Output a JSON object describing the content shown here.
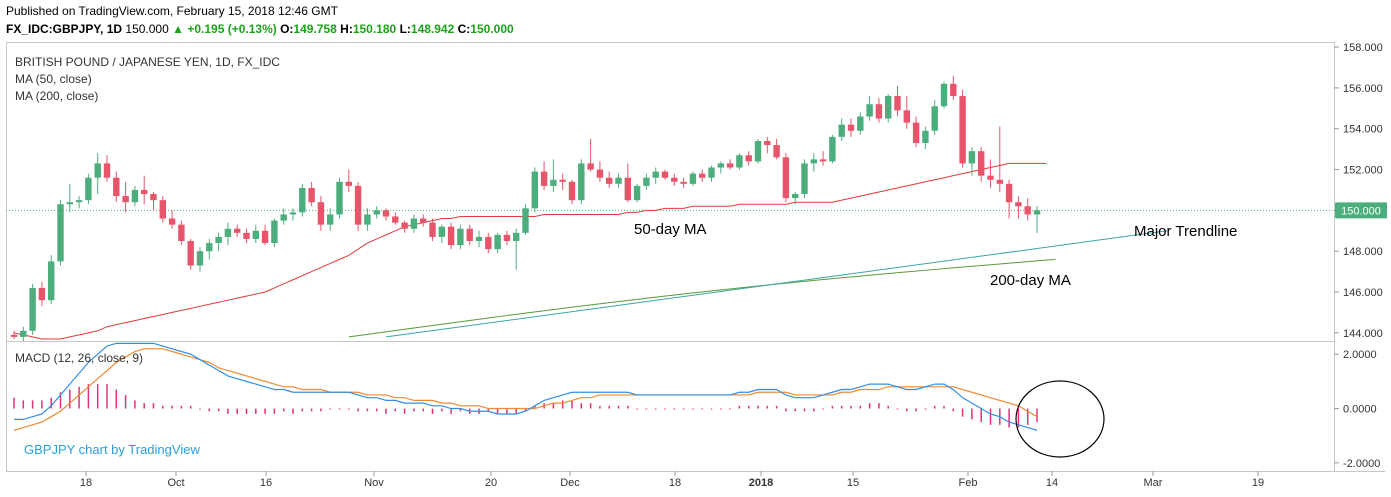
{
  "header": {
    "published": "Published on TradingView.com, February 15, 2018 12:46 GMT",
    "symbol": "FX_IDC:GBPJPY, 1D",
    "last": "150.000",
    "change": "▲ +0.195 (+0.13%)",
    "o_label": "O:",
    "o_value": "149.758",
    "h_label": "H:",
    "h_value": "150.180",
    "l_label": "L:",
    "l_value": "148.942",
    "c_label": "C:",
    "c_value": "150.000"
  },
  "legend": {
    "title": "BRITISH POUND / JAPANESE YEN, 1D, FX_IDC",
    "ma50": "MA (50, close)",
    "ma200": "MA (200, close)",
    "macd": "MACD (12, 26, close, 9)",
    "credit": "GBPJPY chart by TradingView"
  },
  "colors": {
    "up": "#4cae7c",
    "down": "#e8546a",
    "ma50": "#e03a3a",
    "ma200": "#5a9a3a",
    "trend": "#3aa6a6",
    "macd": "#2f8fe8",
    "signal": "#f08a30",
    "hist": "#e0327a",
    "credit": "#2a9fd8",
    "last_tag": "#4cae7c"
  },
  "annotations": {
    "ma50": "50-day MA",
    "trendline": "Major Trendline",
    "ma200": "200-day MA"
  },
  "chart_data": {
    "type": "candlestick",
    "price_axis": {
      "ticks": [
        "158.000",
        "156.000",
        "154.000",
        "152.000",
        "150.000",
        "148.000",
        "146.000",
        "144.000"
      ],
      "ylim": [
        143.6,
        158.2
      ]
    },
    "macd_axis": {
      "ticks": [
        "2.0000",
        "0.0000",
        "-2.0000"
      ],
      "ylim": [
        -2.3,
        2.45
      ]
    },
    "last_price": "150.000",
    "x_ticks": [
      "18",
      "Oct",
      "16",
      "Nov",
      "20",
      "Dec",
      "18",
      "2018",
      "15",
      "Feb",
      "14",
      "Mar",
      "19"
    ],
    "ohlc": [
      [
        143.9,
        144.1,
        143.7,
        143.8
      ],
      [
        143.8,
        144.3,
        143.6,
        144.1
      ],
      [
        144.1,
        146.4,
        143.9,
        146.2
      ],
      [
        146.2,
        146.5,
        145.3,
        145.6
      ],
      [
        145.6,
        147.8,
        145.4,
        147.5
      ],
      [
        147.5,
        150.5,
        147.3,
        150.3
      ],
      [
        150.3,
        151.3,
        149.9,
        150.4
      ],
      [
        150.4,
        150.7,
        150.1,
        150.5
      ],
      [
        150.5,
        151.8,
        150.3,
        151.6
      ],
      [
        151.6,
        152.8,
        150.8,
        152.3
      ],
      [
        152.3,
        152.7,
        151.4,
        151.6
      ],
      [
        151.6,
        151.9,
        150.4,
        150.7
      ],
      [
        150.7,
        151.4,
        149.9,
        150.4
      ],
      [
        150.4,
        151.2,
        150.2,
        151.0
      ],
      [
        151.0,
        151.7,
        150.3,
        150.8
      ],
      [
        150.8,
        150.9,
        150.0,
        150.5
      ],
      [
        150.5,
        150.7,
        149.4,
        149.6
      ],
      [
        149.6,
        150.0,
        149.1,
        149.3
      ],
      [
        149.3,
        149.5,
        148.3,
        148.5
      ],
      [
        148.5,
        148.6,
        147.1,
        147.3
      ],
      [
        147.3,
        148.2,
        147.0,
        148.0
      ],
      [
        148.0,
        148.6,
        147.6,
        148.4
      ],
      [
        148.4,
        148.9,
        148.0,
        148.7
      ],
      [
        148.7,
        149.4,
        148.3,
        149.1
      ],
      [
        149.1,
        149.3,
        148.7,
        148.9
      ],
      [
        148.9,
        149.1,
        148.4,
        148.6
      ],
      [
        148.6,
        149.3,
        148.4,
        149.0
      ],
      [
        149.0,
        149.3,
        148.3,
        148.4
      ],
      [
        148.4,
        149.6,
        148.2,
        149.5
      ],
      [
        149.5,
        150.1,
        149.3,
        149.8
      ],
      [
        149.8,
        150.1,
        149.5,
        149.9
      ],
      [
        149.9,
        151.3,
        149.7,
        151.1
      ],
      [
        151.1,
        151.4,
        150.2,
        150.4
      ],
      [
        150.4,
        150.7,
        149.0,
        149.3
      ],
      [
        149.3,
        150.1,
        149.0,
        149.8
      ],
      [
        149.8,
        151.6,
        149.6,
        151.4
      ],
      [
        151.4,
        152.0,
        150.9,
        151.2
      ],
      [
        151.2,
        151.4,
        149.0,
        149.3
      ],
      [
        149.3,
        150.1,
        149.0,
        149.8
      ],
      [
        149.8,
        150.2,
        149.6,
        150.0
      ],
      [
        150.0,
        150.1,
        149.5,
        149.7
      ],
      [
        149.7,
        149.9,
        149.3,
        149.4
      ],
      [
        149.4,
        149.5,
        148.9,
        149.1
      ],
      [
        149.1,
        149.8,
        148.9,
        149.6
      ],
      [
        149.6,
        149.8,
        149.2,
        149.4
      ],
      [
        149.4,
        149.6,
        148.5,
        148.7
      ],
      [
        148.7,
        149.3,
        148.4,
        149.2
      ],
      [
        149.2,
        149.4,
        148.1,
        148.3
      ],
      [
        148.3,
        149.3,
        148.1,
        149.1
      ],
      [
        149.1,
        149.3,
        148.3,
        148.5
      ],
      [
        148.5,
        149.0,
        148.2,
        148.7
      ],
      [
        148.7,
        148.9,
        147.9,
        148.1
      ],
      [
        148.1,
        148.9,
        147.9,
        148.8
      ],
      [
        148.8,
        149.0,
        148.3,
        148.5
      ],
      [
        148.5,
        149.1,
        147.1,
        148.9
      ],
      [
        148.9,
        150.3,
        148.8,
        150.1
      ],
      [
        150.1,
        152.1,
        149.9,
        151.9
      ],
      [
        151.9,
        152.4,
        151.0,
        151.2
      ],
      [
        151.2,
        152.5,
        150.9,
        151.5
      ],
      [
        151.5,
        151.8,
        151.0,
        151.4
      ],
      [
        151.4,
        151.5,
        150.3,
        150.5
      ],
      [
        150.5,
        152.5,
        150.3,
        152.3
      ],
      [
        152.3,
        153.5,
        151.9,
        152.0
      ],
      [
        152.0,
        152.4,
        151.4,
        151.6
      ],
      [
        151.6,
        151.9,
        151.1,
        151.3
      ],
      [
        151.3,
        151.8,
        151.1,
        151.6
      ],
      [
        151.6,
        152.3,
        150.4,
        150.5
      ],
      [
        150.5,
        151.3,
        150.4,
        151.2
      ],
      [
        151.2,
        151.8,
        151.0,
        151.6
      ],
      [
        151.6,
        152.1,
        151.3,
        151.9
      ],
      [
        151.9,
        152.0,
        151.5,
        151.6
      ],
      [
        151.6,
        151.8,
        151.2,
        151.4
      ],
      [
        151.4,
        151.6,
        151.1,
        151.3
      ],
      [
        151.3,
        151.9,
        151.2,
        151.8
      ],
      [
        151.8,
        152.0,
        151.4,
        151.6
      ],
      [
        151.6,
        152.2,
        151.4,
        152.1
      ],
      [
        152.1,
        152.4,
        151.8,
        152.3
      ],
      [
        152.3,
        152.5,
        152.0,
        152.1
      ],
      [
        152.1,
        152.8,
        152.0,
        152.7
      ],
      [
        152.7,
        152.9,
        152.2,
        152.4
      ],
      [
        152.4,
        153.5,
        152.3,
        153.4
      ],
      [
        153.4,
        153.6,
        152.8,
        153.2
      ],
      [
        153.2,
        153.5,
        152.5,
        152.6
      ],
      [
        152.6,
        152.8,
        150.4,
        150.6
      ],
      [
        150.6,
        150.9,
        150.3,
        150.8
      ],
      [
        150.8,
        152.5,
        150.6,
        152.3
      ],
      [
        152.3,
        152.8,
        151.9,
        152.5
      ],
      [
        152.5,
        152.9,
        152.2,
        152.4
      ],
      [
        152.4,
        153.7,
        152.3,
        153.6
      ],
      [
        153.6,
        154.5,
        153.4,
        154.2
      ],
      [
        154.2,
        154.5,
        153.6,
        153.9
      ],
      [
        153.9,
        154.8,
        153.7,
        154.6
      ],
      [
        154.6,
        155.6,
        154.4,
        155.2
      ],
      [
        155.2,
        155.5,
        154.3,
        154.5
      ],
      [
        154.5,
        155.7,
        154.3,
        155.6
      ],
      [
        155.6,
        156.1,
        154.6,
        154.9
      ],
      [
        154.9,
        155.6,
        154.0,
        154.3
      ],
      [
        154.3,
        154.6,
        153.1,
        153.3
      ],
      [
        153.3,
        154.1,
        153.0,
        153.9
      ],
      [
        153.9,
        155.4,
        153.7,
        155.1
      ],
      [
        155.1,
        156.3,
        155.0,
        156.2
      ],
      [
        156.2,
        156.6,
        155.4,
        155.6
      ],
      [
        155.6,
        155.9,
        152.1,
        152.3
      ],
      [
        152.3,
        153.1,
        151.7,
        152.9
      ],
      [
        152.9,
        153.1,
        151.4,
        151.7
      ],
      [
        151.7,
        152.5,
        151.1,
        151.5
      ],
      [
        151.5,
        154.1,
        150.9,
        151.3
      ],
      [
        151.3,
        151.5,
        149.6,
        150.4
      ],
      [
        150.4,
        150.7,
        149.6,
        150.2
      ],
      [
        150.2,
        150.6,
        149.5,
        149.8
      ],
      [
        149.8,
        150.2,
        148.9,
        150.0
      ]
    ],
    "ma50": [
      144.0,
      143.9,
      143.8,
      143.7,
      143.7,
      143.7,
      143.8,
      143.9,
      144.0,
      144.1,
      144.3,
      144.4,
      144.5,
      144.6,
      144.7,
      144.8,
      144.9,
      145.0,
      145.1,
      145.2,
      145.3,
      145.4,
      145.5,
      145.6,
      145.7,
      145.8,
      145.9,
      146.0,
      146.2,
      146.4,
      146.6,
      146.8,
      147.0,
      147.2,
      147.4,
      147.6,
      147.8,
      148.1,
      148.4,
      148.6,
      148.8,
      149.0,
      149.2,
      149.3,
      149.4,
      149.5,
      149.6,
      149.6,
      149.7,
      149.7,
      149.7,
      149.7,
      149.7,
      149.7,
      149.7,
      149.7,
      149.7,
      149.8,
      149.8,
      149.8,
      149.8,
      149.8,
      149.8,
      149.8,
      149.8,
      149.8,
      149.9,
      149.9,
      150.0,
      150.0,
      150.1,
      150.1,
      150.1,
      150.2,
      150.2,
      150.2,
      150.2,
      150.2,
      150.3,
      150.3,
      150.3,
      150.3,
      150.3,
      150.3,
      150.4,
      150.4,
      150.4,
      150.4,
      150.4,
      150.5,
      150.6,
      150.7,
      150.8,
      150.9,
      151.0,
      151.1,
      151.2,
      151.3,
      151.4,
      151.5,
      151.6,
      151.7,
      151.8,
      151.9,
      152.0,
      152.1,
      152.2,
      152.3,
      152.3,
      152.3,
      152.3,
      152.3
    ],
    "ma200_start": [
      36,
      143.8
    ],
    "ma200_end": [
      112,
      147.6
    ],
    "trendline": {
      "from": [
        40,
        143.8
      ],
      "to": [
        124,
        149.0
      ]
    },
    "macd": [
      -0.4,
      -0.4,
      -0.3,
      -0.2,
      0.1,
      0.5,
      0.9,
      1.3,
      1.7,
      2.0,
      2.3,
      2.4,
      2.4,
      2.4,
      2.4,
      2.4,
      2.3,
      2.2,
      2.1,
      2.0,
      1.8,
      1.6,
      1.4,
      1.2,
      1.1,
      1.0,
      0.9,
      0.8,
      0.7,
      0.7,
      0.6,
      0.6,
      0.6,
      0.6,
      0.6,
      0.6,
      0.6,
      0.5,
      0.4,
      0.4,
      0.3,
      0.3,
      0.2,
      0.2,
      0.2,
      0.1,
      0.1,
      0.0,
      0.0,
      -0.1,
      -0.1,
      -0.1,
      -0.2,
      -0.2,
      -0.2,
      -0.1,
      0.1,
      0.3,
      0.4,
      0.5,
      0.6,
      0.6,
      0.6,
      0.6,
      0.6,
      0.6,
      0.6,
      0.5,
      0.5,
      0.5,
      0.5,
      0.5,
      0.5,
      0.5,
      0.5,
      0.5,
      0.5,
      0.5,
      0.6,
      0.6,
      0.7,
      0.7,
      0.7,
      0.5,
      0.4,
      0.4,
      0.4,
      0.5,
      0.6,
      0.7,
      0.7,
      0.8,
      0.9,
      0.9,
      0.9,
      0.8,
      0.7,
      0.7,
      0.8,
      0.9,
      0.9,
      0.7,
      0.4,
      0.2,
      0.0,
      -0.2,
      -0.3,
      -0.5,
      -0.6,
      -0.7,
      -0.8
    ],
    "signal": [
      -0.8,
      -0.7,
      -0.6,
      -0.5,
      -0.3,
      -0.1,
      0.2,
      0.5,
      0.8,
      1.1,
      1.4,
      1.7,
      1.9,
      2.1,
      2.2,
      2.2,
      2.2,
      2.1,
      2.0,
      1.9,
      1.8,
      1.7,
      1.5,
      1.4,
      1.3,
      1.2,
      1.1,
      1.0,
      0.9,
      0.8,
      0.8,
      0.7,
      0.7,
      0.7,
      0.6,
      0.6,
      0.6,
      0.6,
      0.5,
      0.5,
      0.5,
      0.4,
      0.4,
      0.3,
      0.3,
      0.3,
      0.2,
      0.2,
      0.1,
      0.1,
      0.1,
      0.0,
      0.0,
      0.0,
      0.0,
      0.0,
      0.0,
      0.1,
      0.2,
      0.2,
      0.3,
      0.4,
      0.4,
      0.5,
      0.5,
      0.5,
      0.5,
      0.5,
      0.5,
      0.5,
      0.5,
      0.5,
      0.5,
      0.5,
      0.5,
      0.5,
      0.5,
      0.5,
      0.5,
      0.5,
      0.6,
      0.6,
      0.6,
      0.6,
      0.5,
      0.5,
      0.5,
      0.5,
      0.5,
      0.6,
      0.6,
      0.7,
      0.7,
      0.7,
      0.8,
      0.8,
      0.8,
      0.8,
      0.8,
      0.8,
      0.8,
      0.8,
      0.7,
      0.6,
      0.5,
      0.4,
      0.3,
      0.2,
      0.1,
      -0.1,
      -0.3
    ]
  }
}
